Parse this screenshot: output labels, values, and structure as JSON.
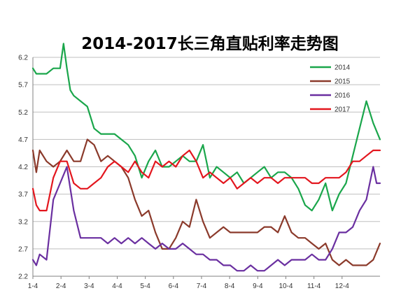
{
  "chart_data": {
    "type": "line",
    "title": "2014-2017长三角直贴利率走势图",
    "xlabel": "",
    "ylabel": "",
    "ylim": [
      2.2,
      6.2
    ],
    "yticks": [
      "2.2",
      "2.7",
      "3.2",
      "3.7",
      "4.2",
      "4.7",
      "5.2",
      "5.7",
      "6.2"
    ],
    "x_tick_labels": [
      "1-4",
      "2-4",
      "3-4",
      "4-4",
      "5-4",
      "6-4",
      "7-4",
      "8-4",
      "9-4",
      "10-4",
      "11-4",
      "12-4"
    ],
    "x_unit": "week",
    "x_range": [
      0,
      51
    ],
    "grid": "horizontal",
    "legend_position": "top-right",
    "series": [
      {
        "name": "2014",
        "color": "#1aa64b",
        "x": [
          0,
          0.5,
          1,
          2,
          3,
          4,
          4.5,
          5,
          5.5,
          6,
          7,
          8,
          9,
          10,
          11,
          12,
          13,
          14,
          15,
          16,
          17,
          18,
          19,
          20,
          21,
          22,
          23,
          24,
          25,
          26,
          27,
          28,
          29,
          30,
          31,
          32,
          33,
          34,
          35,
          36,
          37,
          38,
          39,
          40,
          41,
          42,
          43,
          44,
          45,
          46,
          47,
          48,
          49,
          50,
          51
        ],
        "y": [
          6.0,
          5.9,
          5.9,
          5.9,
          6.0,
          6.0,
          6.45,
          6.0,
          5.6,
          5.5,
          5.4,
          5.3,
          4.9,
          4.8,
          4.8,
          4.8,
          4.7,
          4.6,
          4.4,
          4.0,
          4.3,
          4.5,
          4.2,
          4.2,
          4.3,
          4.4,
          4.3,
          4.3,
          4.6,
          4.0,
          4.2,
          4.1,
          4.0,
          4.1,
          3.9,
          4.0,
          4.1,
          4.2,
          4.0,
          4.1,
          4.1,
          4.0,
          3.8,
          3.5,
          3.4,
          3.6,
          3.9,
          3.4,
          3.7,
          3.9,
          4.4,
          4.9,
          5.4,
          5.0,
          4.7
        ]
      },
      {
        "name": "2015",
        "color": "#8b3a2b",
        "x": [
          0,
          0.5,
          1,
          2,
          3,
          4,
          5,
          6,
          7,
          8,
          9,
          10,
          11,
          12,
          13,
          14,
          15,
          16,
          17,
          18,
          19,
          20,
          21,
          22,
          23,
          24,
          25,
          26,
          27,
          28,
          29,
          30,
          31,
          32,
          33,
          34,
          35,
          36,
          37,
          38,
          39,
          40,
          41,
          42,
          43,
          44,
          45,
          46,
          47,
          48,
          49,
          50,
          51
        ],
        "y": [
          4.5,
          4.1,
          4.5,
          4.3,
          4.2,
          4.3,
          4.5,
          4.3,
          4.3,
          4.7,
          4.6,
          4.3,
          4.4,
          4.3,
          4.2,
          4.0,
          3.6,
          3.3,
          3.4,
          3.0,
          2.7,
          2.7,
          2.9,
          3.2,
          3.1,
          3.6,
          3.2,
          2.9,
          3.0,
          3.1,
          3.0,
          3.0,
          3.0,
          3.0,
          3.0,
          3.1,
          3.1,
          3.0,
          3.3,
          3.0,
          2.9,
          2.9,
          2.8,
          2.7,
          2.8,
          2.5,
          2.4,
          2.5,
          2.4,
          2.4,
          2.4,
          2.5,
          2.8
        ]
      },
      {
        "name": "2016",
        "color": "#6a2fa0",
        "x": [
          0,
          0.5,
          1,
          2,
          3,
          4,
          5,
          6,
          7,
          8,
          9,
          10,
          11,
          12,
          13,
          14,
          15,
          16,
          17,
          18,
          19,
          20,
          21,
          22,
          23,
          24,
          25,
          26,
          27,
          28,
          29,
          30,
          31,
          32,
          33,
          34,
          35,
          36,
          37,
          38,
          39,
          40,
          41,
          42,
          43,
          44,
          45,
          46,
          47,
          48,
          49,
          50,
          50.5,
          51
        ],
        "y": [
          2.5,
          2.4,
          2.6,
          2.5,
          3.6,
          3.9,
          4.2,
          3.4,
          2.9,
          2.9,
          2.9,
          2.9,
          2.8,
          2.9,
          2.8,
          2.9,
          2.8,
          2.9,
          2.8,
          2.7,
          2.8,
          2.7,
          2.7,
          2.8,
          2.7,
          2.6,
          2.6,
          2.5,
          2.5,
          2.4,
          2.4,
          2.3,
          2.3,
          2.4,
          2.3,
          2.3,
          2.4,
          2.5,
          2.4,
          2.5,
          2.5,
          2.5,
          2.6,
          2.5,
          2.5,
          2.7,
          3.0,
          3.0,
          3.1,
          3.4,
          3.6,
          4.2,
          3.9,
          3.9
        ]
      },
      {
        "name": "2017",
        "color": "#e3161e",
        "x": [
          0,
          0.5,
          1,
          2,
          3,
          4,
          5,
          6,
          7,
          8,
          9,
          10,
          11,
          12,
          13,
          14,
          15,
          16,
          17,
          18,
          19,
          20,
          21,
          22,
          23,
          24,
          25,
          26,
          27,
          28,
          29,
          30,
          31,
          32,
          33,
          34,
          35,
          36,
          37,
          38,
          39,
          40,
          41,
          42,
          43,
          44,
          45,
          46,
          47,
          48,
          49,
          50,
          51
        ],
        "y": [
          3.8,
          3.5,
          3.4,
          3.4,
          4.0,
          4.3,
          4.3,
          3.9,
          3.8,
          3.8,
          3.9,
          4.0,
          4.2,
          4.3,
          4.2,
          4.1,
          4.3,
          4.1,
          4.0,
          4.3,
          4.2,
          4.3,
          4.2,
          4.4,
          4.5,
          4.3,
          4.0,
          4.1,
          4.0,
          3.9,
          4.0,
          3.8,
          3.9,
          4.0,
          3.9,
          4.0,
          4.0,
          3.9,
          4.0,
          4.0,
          4.0,
          4.0,
          3.9,
          3.9,
          4.0,
          4.0,
          4.0,
          4.1,
          4.3,
          4.3,
          4.4,
          4.5,
          4.5
        ]
      }
    ]
  }
}
